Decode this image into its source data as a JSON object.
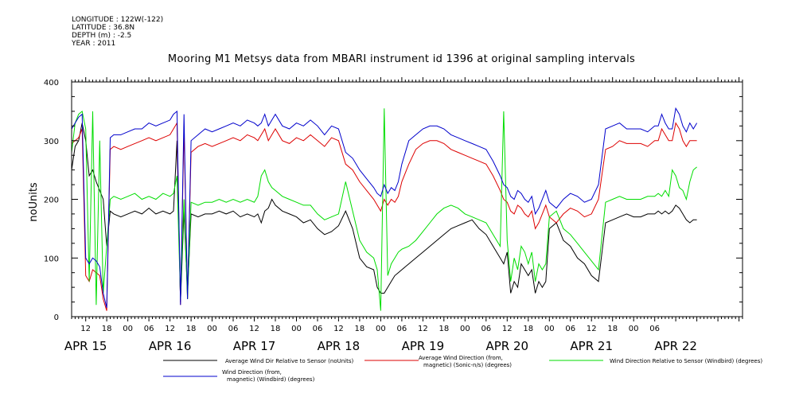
{
  "meta": {
    "longitude": "LONGITUDE : 122W(-122)",
    "latitude": "LATITUDE : 36.8N",
    "depth": "DEPTH (m) : -2.5",
    "year": "YEAR : 2011"
  },
  "colors": {
    "black": "#000000",
    "red": "#dd0000",
    "green": "#00dd00",
    "blue": "#0000cc"
  },
  "chart_data": {
    "type": "line",
    "title": "Mooring M1 Metsys data from MBARI instrument id 1396 at original sampling intervals",
    "ylabel": "noUnits",
    "ylim": [
      0,
      400
    ],
    "yticks": [
      "0",
      "100",
      "200",
      "300",
      "400"
    ],
    "xlim": [
      8,
      199
    ],
    "x_unit": "hours since APR 15 00:00 (labelled by hour of day)",
    "xtick_labels": [
      "12",
      "18",
      "00",
      "06",
      "12",
      "18",
      "00",
      "06",
      "12",
      "18",
      "00",
      "06",
      "12",
      "18",
      "00",
      "06",
      "12",
      "18",
      "00",
      "06",
      "12",
      "18",
      "00",
      "06",
      "12",
      "18",
      "00",
      "06"
    ],
    "xtick_hours": [
      12,
      18,
      24,
      30,
      36,
      42,
      48,
      54,
      60,
      66,
      72,
      78,
      84,
      90,
      96,
      102,
      108,
      114,
      120,
      126,
      132,
      138,
      144,
      150,
      156,
      162,
      168,
      174
    ],
    "day_labels": [
      "APR 15",
      "APR 16",
      "APR 17",
      "APR 18",
      "APR 19",
      "APR 20",
      "APR 21",
      "APR 22"
    ],
    "day_hours": [
      12,
      36,
      60,
      84,
      108,
      132,
      156,
      180
    ],
    "grid": false,
    "legend_position": "bottom",
    "series": [
      {
        "name": "Average Wind Dir Relative to Sensor (noUnits)",
        "color": "#000000",
        "x": [
          8,
          9,
          10,
          11,
          12,
          13,
          14,
          15,
          16,
          17,
          18,
          19,
          20,
          22,
          24,
          26,
          28,
          30,
          32,
          34,
          36,
          37,
          38,
          39,
          40,
          41,
          42,
          44,
          46,
          48,
          50,
          52,
          54,
          56,
          58,
          60,
          61,
          62,
          63,
          64,
          65,
          66,
          68,
          70,
          72,
          74,
          76,
          78,
          80,
          82,
          84,
          86,
          88,
          90,
          92,
          94,
          95,
          96,
          97,
          98,
          99,
          100,
          101,
          102,
          104,
          106,
          108,
          110,
          112,
          114,
          116,
          118,
          120,
          122,
          124,
          126,
          128,
          130,
          131,
          132,
          133,
          134,
          135,
          136,
          137,
          138,
          139,
          140,
          141,
          142,
          143,
          144,
          146,
          148,
          150,
          152,
          154,
          156,
          158,
          160,
          162,
          164,
          166,
          168,
          170,
          172,
          174,
          175,
          176,
          177,
          178,
          179,
          180,
          181,
          182,
          183,
          184,
          185,
          186
        ],
        "y": [
          250,
          290,
          300,
          330,
          300,
          240,
          250,
          230,
          215,
          200,
          120,
          180,
          175,
          170,
          175,
          180,
          175,
          185,
          175,
          180,
          175,
          180,
          300,
          25,
          180,
          40,
          175,
          170,
          175,
          175,
          180,
          175,
          180,
          170,
          175,
          170,
          175,
          160,
          180,
          185,
          200,
          190,
          180,
          175,
          170,
          160,
          165,
          150,
          140,
          145,
          155,
          180,
          150,
          100,
          85,
          80,
          50,
          40,
          40,
          50,
          60,
          70,
          75,
          80,
          90,
          100,
          110,
          120,
          130,
          140,
          150,
          155,
          160,
          165,
          150,
          140,
          120,
          100,
          90,
          110,
          40,
          60,
          50,
          90,
          80,
          70,
          80,
          40,
          60,
          50,
          60,
          150,
          160,
          130,
          120,
          100,
          90,
          70,
          60,
          160,
          165,
          170,
          175,
          170,
          170,
          175,
          175,
          180,
          175,
          180,
          175,
          180,
          190,
          185,
          175,
          165,
          160,
          165,
          165
        ]
      },
      {
        "name": "Average Wind Direction (from, magnetic) (Sonic-n/s) (degrees)",
        "color": "#dd0000",
        "x": [
          8,
          9,
          10,
          11,
          12,
          13,
          14,
          15,
          16,
          17,
          18,
          19,
          20,
          22,
          24,
          26,
          28,
          30,
          32,
          34,
          36,
          37,
          38,
          39,
          40,
          41,
          42,
          44,
          46,
          48,
          50,
          52,
          54,
          56,
          58,
          60,
          61,
          62,
          63,
          64,
          65,
          66,
          68,
          70,
          72,
          74,
          76,
          78,
          80,
          82,
          84,
          86,
          88,
          90,
          92,
          94,
          95,
          96,
          97,
          98,
          99,
          100,
          101,
          102,
          104,
          106,
          108,
          110,
          112,
          114,
          116,
          118,
          120,
          122,
          124,
          126,
          128,
          130,
          131,
          132,
          133,
          134,
          135,
          136,
          137,
          138,
          139,
          140,
          141,
          142,
          143,
          144,
          146,
          148,
          150,
          152,
          154,
          156,
          158,
          160,
          162,
          164,
          166,
          168,
          170,
          172,
          174,
          175,
          176,
          177,
          178,
          179,
          180,
          181,
          182,
          183,
          184,
          185,
          186
        ],
        "y": [
          295,
          300,
          305,
          320,
          70,
          60,
          80,
          75,
          70,
          30,
          10,
          285,
          290,
          285,
          290,
          295,
          300,
          305,
          300,
          305,
          310,
          320,
          330,
          20,
          320,
          30,
          280,
          290,
          295,
          290,
          295,
          300,
          305,
          300,
          310,
          305,
          300,
          310,
          320,
          300,
          310,
          320,
          300,
          295,
          305,
          300,
          310,
          300,
          290,
          305,
          300,
          260,
          250,
          230,
          215,
          200,
          190,
          180,
          200,
          190,
          200,
          195,
          205,
          230,
          260,
          285,
          295,
          300,
          300,
          295,
          285,
          280,
          275,
          270,
          265,
          260,
          240,
          215,
          200,
          195,
          180,
          175,
          190,
          185,
          175,
          170,
          180,
          150,
          160,
          175,
          190,
          170,
          160,
          175,
          185,
          180,
          170,
          175,
          200,
          285,
          290,
          300,
          295,
          295,
          295,
          290,
          300,
          300,
          320,
          310,
          300,
          300,
          330,
          320,
          300,
          290,
          300,
          300,
          300
        ]
      },
      {
        "name": "Wind Direction Relative to Sensor (Windbird) (degrees)",
        "color": "#00dd00",
        "x": [
          8,
          9,
          10,
          11,
          12,
          13,
          14,
          15,
          16,
          17,
          18,
          19,
          20,
          22,
          24,
          26,
          28,
          30,
          32,
          34,
          36,
          37,
          38,
          39,
          40,
          41,
          42,
          44,
          46,
          48,
          50,
          52,
          54,
          56,
          58,
          60,
          61,
          62,
          63,
          64,
          65,
          66,
          68,
          70,
          72,
          74,
          76,
          78,
          80,
          82,
          84,
          86,
          88,
          90,
          92,
          94,
          95,
          96,
          97,
          98,
          99,
          100,
          101,
          102,
          104,
          106,
          108,
          110,
          112,
          114,
          116,
          118,
          120,
          122,
          124,
          126,
          128,
          130,
          131,
          132,
          133,
          134,
          135,
          136,
          137,
          138,
          139,
          140,
          141,
          142,
          143,
          144,
          146,
          148,
          150,
          152,
          154,
          156,
          158,
          160,
          162,
          164,
          166,
          168,
          170,
          172,
          174,
          175,
          176,
          177,
          178,
          179,
          180,
          181,
          182,
          183,
          184,
          185,
          186
        ],
        "y": [
          280,
          330,
          345,
          350,
          320,
          60,
          350,
          20,
          300,
          40,
          120,
          200,
          205,
          200,
          205,
          210,
          200,
          205,
          200,
          210,
          205,
          210,
          240,
          30,
          200,
          30,
          195,
          190,
          195,
          195,
          200,
          195,
          200,
          195,
          200,
          195,
          205,
          240,
          250,
          230,
          220,
          215,
          205,
          200,
          195,
          190,
          190,
          175,
          165,
          170,
          175,
          230,
          180,
          130,
          110,
          100,
          80,
          10,
          355,
          70,
          90,
          100,
          110,
          115,
          120,
          130,
          145,
          160,
          175,
          185,
          190,
          185,
          175,
          170,
          165,
          160,
          140,
          120,
          350,
          130,
          60,
          100,
          80,
          120,
          110,
          90,
          110,
          60,
          90,
          80,
          90,
          170,
          180,
          150,
          140,
          125,
          110,
          95,
          80,
          195,
          200,
          205,
          200,
          200,
          200,
          205,
          205,
          210,
          205,
          215,
          205,
          250,
          240,
          220,
          215,
          200,
          230,
          250,
          255
        ]
      },
      {
        "name": "Wind Direction (from, magnetic) (Windbird) (degrees)",
        "color": "#0000cc",
        "x": [
          8,
          9,
          10,
          11,
          12,
          13,
          14,
          15,
          16,
          17,
          18,
          19,
          20,
          22,
          24,
          26,
          28,
          30,
          32,
          34,
          36,
          37,
          38,
          39,
          40,
          41,
          42,
          44,
          46,
          48,
          50,
          52,
          54,
          56,
          58,
          60,
          61,
          62,
          63,
          64,
          65,
          66,
          68,
          70,
          72,
          74,
          76,
          78,
          80,
          82,
          84,
          86,
          88,
          90,
          92,
          94,
          95,
          96,
          97,
          98,
          99,
          100,
          101,
          102,
          104,
          106,
          108,
          110,
          112,
          114,
          116,
          118,
          120,
          122,
          124,
          126,
          128,
          130,
          131,
          132,
          133,
          134,
          135,
          136,
          137,
          138,
          139,
          140,
          141,
          142,
          143,
          144,
          146,
          148,
          150,
          152,
          154,
          156,
          158,
          160,
          162,
          164,
          166,
          168,
          170,
          172,
          174,
          175,
          176,
          177,
          178,
          179,
          180,
          181,
          182,
          183,
          184,
          185,
          186
        ],
        "y": [
          320,
          330,
          340,
          345,
          100,
          90,
          100,
          95,
          85,
          40,
          15,
          305,
          310,
          310,
          315,
          320,
          320,
          330,
          325,
          330,
          335,
          345,
          350,
          20,
          345,
          30,
          300,
          310,
          320,
          315,
          320,
          325,
          330,
          325,
          335,
          330,
          325,
          330,
          345,
          325,
          335,
          345,
          325,
          320,
          330,
          325,
          335,
          325,
          310,
          325,
          320,
          280,
          270,
          250,
          235,
          220,
          210,
          205,
          225,
          210,
          220,
          215,
          230,
          260,
          300,
          310,
          320,
          325,
          325,
          320,
          310,
          305,
          300,
          295,
          290,
          285,
          265,
          240,
          225,
          220,
          205,
          200,
          215,
          210,
          200,
          195,
          205,
          175,
          185,
          200,
          215,
          195,
          185,
          200,
          210,
          205,
          195,
          200,
          225,
          320,
          325,
          330,
          320,
          320,
          320,
          315,
          325,
          325,
          345,
          330,
          320,
          320,
          355,
          345,
          325,
          315,
          330,
          320,
          330
        ]
      }
    ]
  }
}
